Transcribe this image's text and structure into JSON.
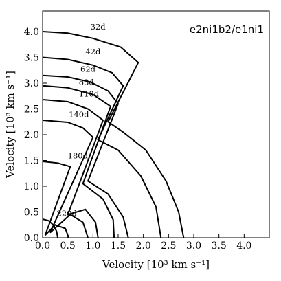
{
  "chart_data": {
    "type": "line",
    "panel_label": "e2ni1b2/e1ni1",
    "xlabel": "Velocity [10³ km s⁻¹]",
    "ylabel": "Velocity [10³ km s⁻¹]",
    "xlim": [
      0,
      4.5
    ],
    "ylim": [
      0,
      4.4
    ],
    "x_ticks": [
      "0.0",
      "0.5",
      "1.0",
      "1.5",
      "2.0",
      "2.5",
      "3.0",
      "3.5",
      "4.0"
    ],
    "y_ticks": [
      "0.0",
      "0.5",
      "1.0",
      "1.5",
      "2.0",
      "2.5",
      "3.0",
      "3.5",
      "4.0"
    ],
    "grid": false,
    "series": [
      {
        "name": "32d",
        "points": [
          [
            0,
            4.0
          ],
          [
            0.5,
            3.97
          ],
          [
            1.0,
            3.87
          ],
          [
            1.55,
            3.7
          ],
          [
            1.9,
            3.4
          ],
          [
            1.3,
            2.25
          ],
          [
            1.6,
            2.05
          ],
          [
            2.05,
            1.7
          ],
          [
            2.45,
            1.1
          ],
          [
            2.7,
            0.5
          ],
          [
            2.8,
            0
          ]
        ]
      },
      {
        "name": "42d",
        "points": [
          [
            0,
            3.5
          ],
          [
            0.5,
            3.46
          ],
          [
            1.0,
            3.35
          ],
          [
            1.38,
            3.2
          ],
          [
            1.6,
            2.95
          ],
          [
            1.1,
            1.9
          ],
          [
            1.5,
            1.7
          ],
          [
            1.95,
            1.2
          ],
          [
            2.25,
            0.6
          ],
          [
            2.35,
            0
          ]
        ]
      },
      {
        "name": "62d",
        "points": [
          [
            0,
            3.15
          ],
          [
            0.5,
            3.12
          ],
          [
            0.95,
            3.02
          ],
          [
            1.3,
            2.85
          ],
          [
            1.5,
            2.6
          ],
          [
            0.9,
            1.1
          ],
          [
            1.3,
            0.85
          ],
          [
            1.6,
            0.4
          ],
          [
            1.7,
            0
          ]
        ]
      },
      {
        "name": "83d",
        "points": [
          [
            0,
            2.95
          ],
          [
            0.5,
            2.91
          ],
          [
            1.0,
            2.78
          ],
          [
            1.35,
            2.55
          ],
          [
            0.8,
            1.05
          ],
          [
            1.2,
            0.75
          ],
          [
            1.4,
            0.35
          ],
          [
            1.42,
            0
          ]
        ]
      },
      {
        "name": "110d",
        "points": [
          [
            0,
            2.68
          ],
          [
            0.5,
            2.64
          ],
          [
            0.9,
            2.5
          ],
          [
            1.2,
            2.28
          ],
          [
            0.5,
            0.45
          ],
          [
            0.85,
            0.55
          ],
          [
            1.05,
            0.3
          ],
          [
            1.1,
            0
          ]
        ]
      },
      {
        "name": "140d",
        "points": [
          [
            0,
            2.28
          ],
          [
            0.5,
            2.24
          ],
          [
            0.8,
            2.13
          ],
          [
            1.0,
            1.95
          ],
          [
            0.15,
            0.1
          ],
          [
            0.55,
            0.45
          ],
          [
            0.8,
            0.3
          ],
          [
            0.9,
            0
          ]
        ]
      },
      {
        "name": "180d",
        "points": [
          [
            0,
            1.48
          ],
          [
            0.3,
            1.45
          ],
          [
            0.55,
            1.38
          ],
          [
            0.05,
            0.05
          ],
          [
            0.25,
            0.25
          ],
          [
            0.45,
            0.18
          ],
          [
            0.52,
            0
          ]
        ]
      },
      {
        "name": "220d",
        "points": [
          [
            0,
            0.36
          ],
          [
            0.12,
            0.33
          ],
          [
            0.22,
            0.24
          ],
          [
            0.28,
            0.12
          ],
          [
            0.3,
            0
          ]
        ]
      }
    ],
    "annotations": [
      {
        "text": "32d",
        "x": 0.95,
        "y": 4.0
      },
      {
        "text": "42d",
        "x": 0.85,
        "y": 3.52
      },
      {
        "text": "62d",
        "x": 0.75,
        "y": 3.18
      },
      {
        "text": "83d",
        "x": 0.72,
        "y": 2.93
      },
      {
        "text": "110d",
        "x": 0.72,
        "y": 2.7
      },
      {
        "text": "140d",
        "x": 0.52,
        "y": 2.3
      },
      {
        "text": "180d",
        "x": 0.5,
        "y": 1.5
      },
      {
        "text": "220d",
        "x": 0.28,
        "y": 0.38
      }
    ]
  }
}
